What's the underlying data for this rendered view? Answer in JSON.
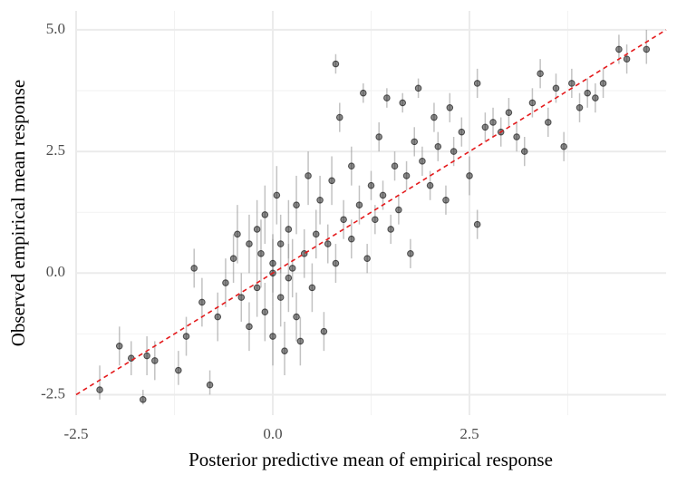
{
  "chart_data": {
    "type": "scatter",
    "x_label": "Posterior predictive mean of empirical response",
    "y_label": "Observed empirical mean response",
    "xlim": [
      -2.5,
      5.0
    ],
    "ylim": [
      -2.92,
      5.39
    ],
    "xticks": [
      -2.5,
      {
        "value": 0,
        "label": "0.0"
      },
      2.5
    ],
    "yticks": [
      -2.5,
      {
        "value": 0,
        "label": "0.0"
      },
      2.5,
      {
        "value": 5,
        "label": "5.0"
      }
    ],
    "minor_xticks": [
      -1.25,
      1.25,
      3.75
    ],
    "minor_yticks": [
      -1.25,
      1.25,
      3.75
    ],
    "grid": true,
    "identity_line": true,
    "identity_line_color": "#e41a1c",
    "color": "#000000",
    "errorbar_color": "#9a9a9a",
    "series": [
      {
        "x": [
          -2.2,
          -1.65,
          -1.95,
          -1.6,
          -1.5,
          -1.2,
          -1.1,
          -0.8,
          -1.0,
          -0.7,
          -0.6,
          -0.5,
          -0.4,
          -0.3,
          -0.3,
          -0.2,
          -0.2,
          -0.1,
          -0.1,
          0.0,
          0.0,
          0.05,
          0.1,
          0.1,
          0.15,
          0.2,
          0.25,
          0.3,
          0.3,
          0.4,
          0.45,
          0.5,
          0.55,
          0.6,
          0.65,
          0.7,
          0.75,
          0.8,
          0.8,
          0.85,
          0.9,
          1.0,
          1.0,
          1.1,
          1.15,
          1.2,
          1.25,
          1.3,
          1.35,
          1.4,
          1.45,
          1.5,
          1.55,
          1.6,
          1.65,
          1.7,
          1.75,
          1.8,
          1.85,
          1.9,
          2.0,
          2.05,
          2.1,
          2.2,
          2.25,
          2.3,
          2.4,
          2.5,
          2.6,
          2.6,
          2.7,
          2.8,
          2.9,
          3.0,
          3.1,
          3.2,
          3.3,
          3.4,
          3.5,
          3.6,
          3.7,
          3.8,
          3.9,
          4.0,
          4.1,
          4.2,
          4.4,
          4.5,
          4.75,
          -1.8,
          -0.9,
          -0.45,
          0.35,
          0.0,
          -0.15,
          0.2
        ],
        "values": [
          -2.4,
          -2.6,
          -1.5,
          -1.7,
          -1.8,
          -2.0,
          -1.3,
          -2.3,
          0.1,
          -0.9,
          -0.2,
          0.3,
          -0.5,
          0.6,
          -1.1,
          0.9,
          -0.3,
          1.2,
          -0.8,
          0.2,
          -1.3,
          1.6,
          -0.5,
          0.6,
          -1.6,
          0.9,
          0.1,
          1.4,
          -0.9,
          0.4,
          2.0,
          -0.3,
          0.8,
          1.5,
          -1.2,
          0.6,
          1.9,
          4.3,
          0.2,
          3.2,
          1.1,
          0.7,
          2.2,
          1.4,
          3.7,
          0.3,
          1.8,
          1.1,
          2.8,
          1.6,
          3.6,
          0.9,
          2.2,
          1.3,
          3.5,
          2.0,
          0.4,
          2.7,
          3.8,
          2.3,
          1.8,
          3.2,
          2.6,
          1.5,
          3.4,
          2.5,
          2.9,
          2.0,
          3.9,
          1.0,
          3.0,
          3.1,
          2.9,
          3.3,
          2.8,
          2.5,
          3.5,
          4.1,
          3.1,
          3.8,
          2.6,
          3.9,
          3.4,
          3.7,
          3.6,
          3.9,
          4.6,
          4.4,
          4.6,
          -1.75,
          -0.6,
          0.8,
          -1.4,
          0.0,
          0.4,
          -0.1
        ],
        "y_lower": [
          -2.6,
          -2.7,
          -1.9,
          -2.1,
          -2.2,
          -2.3,
          -1.7,
          -2.5,
          -0.3,
          -1.4,
          -0.7,
          -0.2,
          -1.0,
          0.0,
          -1.6,
          0.3,
          -0.9,
          0.6,
          -1.4,
          -0.4,
          -1.9,
          1.0,
          -1.1,
          0.0,
          -2.1,
          0.3,
          -0.5,
          0.8,
          -1.4,
          -0.1,
          1.4,
          -0.8,
          0.3,
          1.0,
          -1.6,
          0.2,
          1.4,
          4.1,
          -0.2,
          2.9,
          0.7,
          0.3,
          1.8,
          1.0,
          3.5,
          0.0,
          1.5,
          0.8,
          2.5,
          1.3,
          3.4,
          0.6,
          1.9,
          1.0,
          3.3,
          1.7,
          0.1,
          2.4,
          3.6,
          2.0,
          1.5,
          2.9,
          2.3,
          1.2,
          3.1,
          2.2,
          2.6,
          1.6,
          3.6,
          0.7,
          2.7,
          2.8,
          2.6,
          3.0,
          2.5,
          2.2,
          3.2,
          3.8,
          2.8,
          3.5,
          2.3,
          3.6,
          3.1,
          3.4,
          3.3,
          3.6,
          4.3,
          4.1,
          4.3,
          -2.1,
          -1.1,
          0.2,
          -1.9,
          -0.7,
          -0.3,
          -0.8
        ],
        "y_upper": [
          -1.9,
          -2.4,
          -1.1,
          -1.3,
          -1.4,
          -1.6,
          -0.9,
          -2.0,
          0.5,
          -0.4,
          0.3,
          0.8,
          0.0,
          1.2,
          -0.6,
          1.5,
          0.3,
          1.8,
          -0.2,
          0.8,
          -0.7,
          2.2,
          0.1,
          1.2,
          -1.0,
          1.5,
          0.7,
          2.0,
          -0.4,
          0.9,
          2.5,
          0.2,
          1.3,
          2.0,
          -0.8,
          1.0,
          2.4,
          4.5,
          0.6,
          3.5,
          1.5,
          1.1,
          2.6,
          1.8,
          3.9,
          0.6,
          2.1,
          1.4,
          3.1,
          1.9,
          3.8,
          1.2,
          2.5,
          1.6,
          3.7,
          2.3,
          0.7,
          3.0,
          4.0,
          2.6,
          2.1,
          3.5,
          2.9,
          1.8,
          3.7,
          2.8,
          3.2,
          2.4,
          4.2,
          1.3,
          3.3,
          3.4,
          3.2,
          3.6,
          3.1,
          2.8,
          3.8,
          4.4,
          3.4,
          4.1,
          2.9,
          4.2,
          3.7,
          4.0,
          3.9,
          4.2,
          4.9,
          4.7,
          5.0,
          -1.4,
          -0.1,
          1.4,
          -0.9,
          0.7,
          1.1,
          0.6
        ]
      }
    ]
  }
}
